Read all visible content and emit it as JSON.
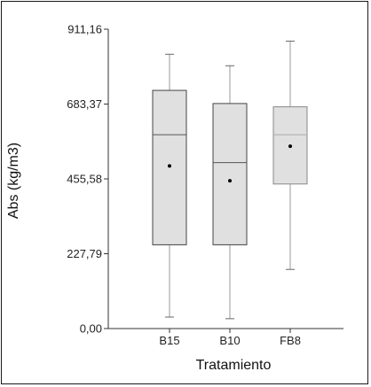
{
  "chart_data": {
    "type": "boxplot",
    "title": "",
    "xlabel": "Tratamiento",
    "ylabel": "Abs (kg/m3)",
    "ylim": [
      0,
      911.16
    ],
    "y_ticks": [
      "0,00",
      "227,79",
      "455,58",
      "683,37",
      "911,16"
    ],
    "y_tick_values": [
      0,
      227.79,
      455.58,
      683.37,
      911.16
    ],
    "grid": false,
    "legend": "none",
    "categories": [
      "B15",
      "B10",
      "FB8"
    ],
    "boxes": [
      {
        "name": "B15",
        "min": 35,
        "q1": 255,
        "median": 590,
        "q3": 725,
        "max": 835,
        "mean": 495
      },
      {
        "name": "B10",
        "min": 30,
        "q1": 255,
        "median": 505,
        "q3": 685,
        "max": 800,
        "mean": 450
      },
      {
        "name": "FB8",
        "min": 180,
        "q1": 440,
        "median": 590,
        "q3": 675,
        "max": 875,
        "mean": 555
      }
    ],
    "colors": {
      "box_fill": "#e0e0e0",
      "axis": "#333333",
      "median_dark": "#555555",
      "median_light": "#aaaaaa",
      "whisker": "#9a9a9a"
    }
  }
}
